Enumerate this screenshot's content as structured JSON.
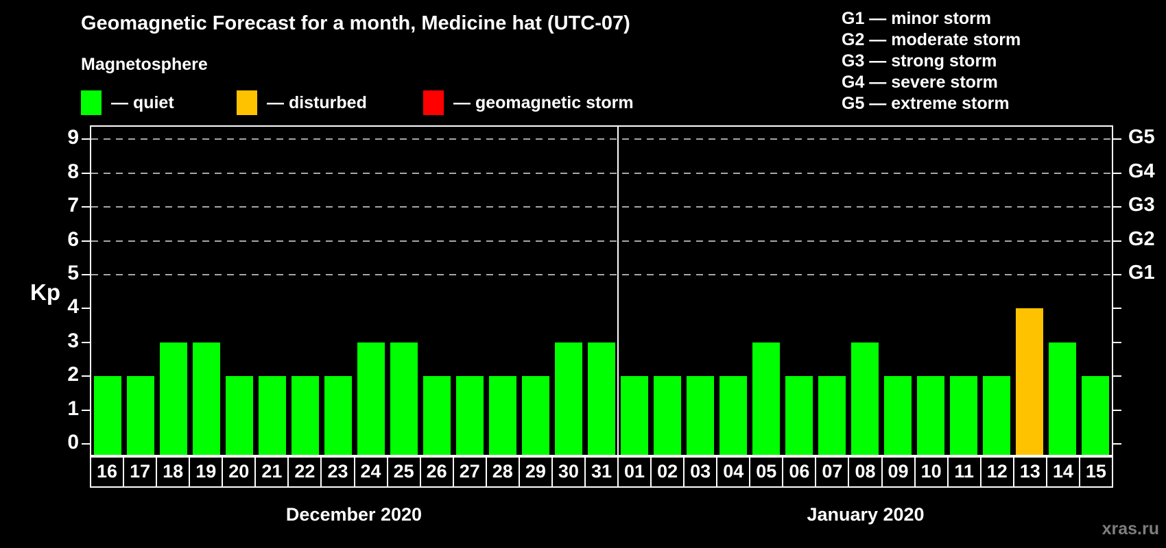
{
  "title": "Geomagnetic Forecast for a month, Medicine hat (UTC-07)",
  "subtitle": "Magnetosphere",
  "status_legend": [
    {
      "name": "quiet",
      "label": "— quiet",
      "color": "#00ff00"
    },
    {
      "name": "disturbed",
      "label": "— disturbed",
      "color": "#ffc200"
    },
    {
      "name": "storm",
      "label": "— geomagnetic storm",
      "color": "#ff0000"
    }
  ],
  "g_scale_legend": [
    "G1 — minor storm",
    "G2 — moderate storm",
    "G3 — strong storm",
    "G4 — severe storm",
    "G5 — extreme storm"
  ],
  "watermark": "xras.ru",
  "chart_data": {
    "type": "bar",
    "ylabel": "Kp",
    "ylim": [
      -0.32,
      9.38
    ],
    "y_ticks": [
      0,
      1,
      2,
      3,
      4,
      5,
      6,
      7,
      8,
      9
    ],
    "grid_levels": [
      5,
      6,
      7,
      8,
      9
    ],
    "grid_style": "dashed horizontal lines at storm levels only",
    "right_axis": [
      {
        "kp": 5,
        "label": "G1"
      },
      {
        "kp": 6,
        "label": "G2"
      },
      {
        "kp": 7,
        "label": "G3"
      },
      {
        "kp": 8,
        "label": "G4"
      },
      {
        "kp": 9,
        "label": "G5"
      }
    ],
    "colors": {
      "quiet": "#00ff00",
      "disturbed": "#ffc200",
      "storm": "#ff0000"
    },
    "months": [
      {
        "label": "December 2020",
        "days": [
          {
            "day": "16",
            "kp": 2,
            "status": "quiet"
          },
          {
            "day": "17",
            "kp": 2,
            "status": "quiet"
          },
          {
            "day": "18",
            "kp": 3,
            "status": "quiet"
          },
          {
            "day": "19",
            "kp": 3,
            "status": "quiet"
          },
          {
            "day": "20",
            "kp": 2,
            "status": "quiet"
          },
          {
            "day": "21",
            "kp": 2,
            "status": "quiet"
          },
          {
            "day": "22",
            "kp": 2,
            "status": "quiet"
          },
          {
            "day": "23",
            "kp": 2,
            "status": "quiet"
          },
          {
            "day": "24",
            "kp": 3,
            "status": "quiet"
          },
          {
            "day": "25",
            "kp": 3,
            "status": "quiet"
          },
          {
            "day": "26",
            "kp": 2,
            "status": "quiet"
          },
          {
            "day": "27",
            "kp": 2,
            "status": "quiet"
          },
          {
            "day": "28",
            "kp": 2,
            "status": "quiet"
          },
          {
            "day": "29",
            "kp": 2,
            "status": "quiet"
          },
          {
            "day": "30",
            "kp": 3,
            "status": "quiet"
          },
          {
            "day": "31",
            "kp": 3,
            "status": "quiet"
          }
        ]
      },
      {
        "label": "January 2020",
        "days": [
          {
            "day": "01",
            "kp": 2,
            "status": "quiet"
          },
          {
            "day": "02",
            "kp": 2,
            "status": "quiet"
          },
          {
            "day": "03",
            "kp": 2,
            "status": "quiet"
          },
          {
            "day": "04",
            "kp": 2,
            "status": "quiet"
          },
          {
            "day": "05",
            "kp": 3,
            "status": "quiet"
          },
          {
            "day": "06",
            "kp": 2,
            "status": "quiet"
          },
          {
            "day": "07",
            "kp": 2,
            "status": "quiet"
          },
          {
            "day": "08",
            "kp": 3,
            "status": "quiet"
          },
          {
            "day": "09",
            "kp": 2,
            "status": "quiet"
          },
          {
            "day": "10",
            "kp": 2,
            "status": "quiet"
          },
          {
            "day": "11",
            "kp": 2,
            "status": "quiet"
          },
          {
            "day": "12",
            "kp": 2,
            "status": "quiet"
          },
          {
            "day": "13",
            "kp": 4,
            "status": "disturbed"
          },
          {
            "day": "14",
            "kp": 3,
            "status": "quiet"
          },
          {
            "day": "15",
            "kp": 2,
            "status": "quiet"
          }
        ]
      }
    ]
  }
}
